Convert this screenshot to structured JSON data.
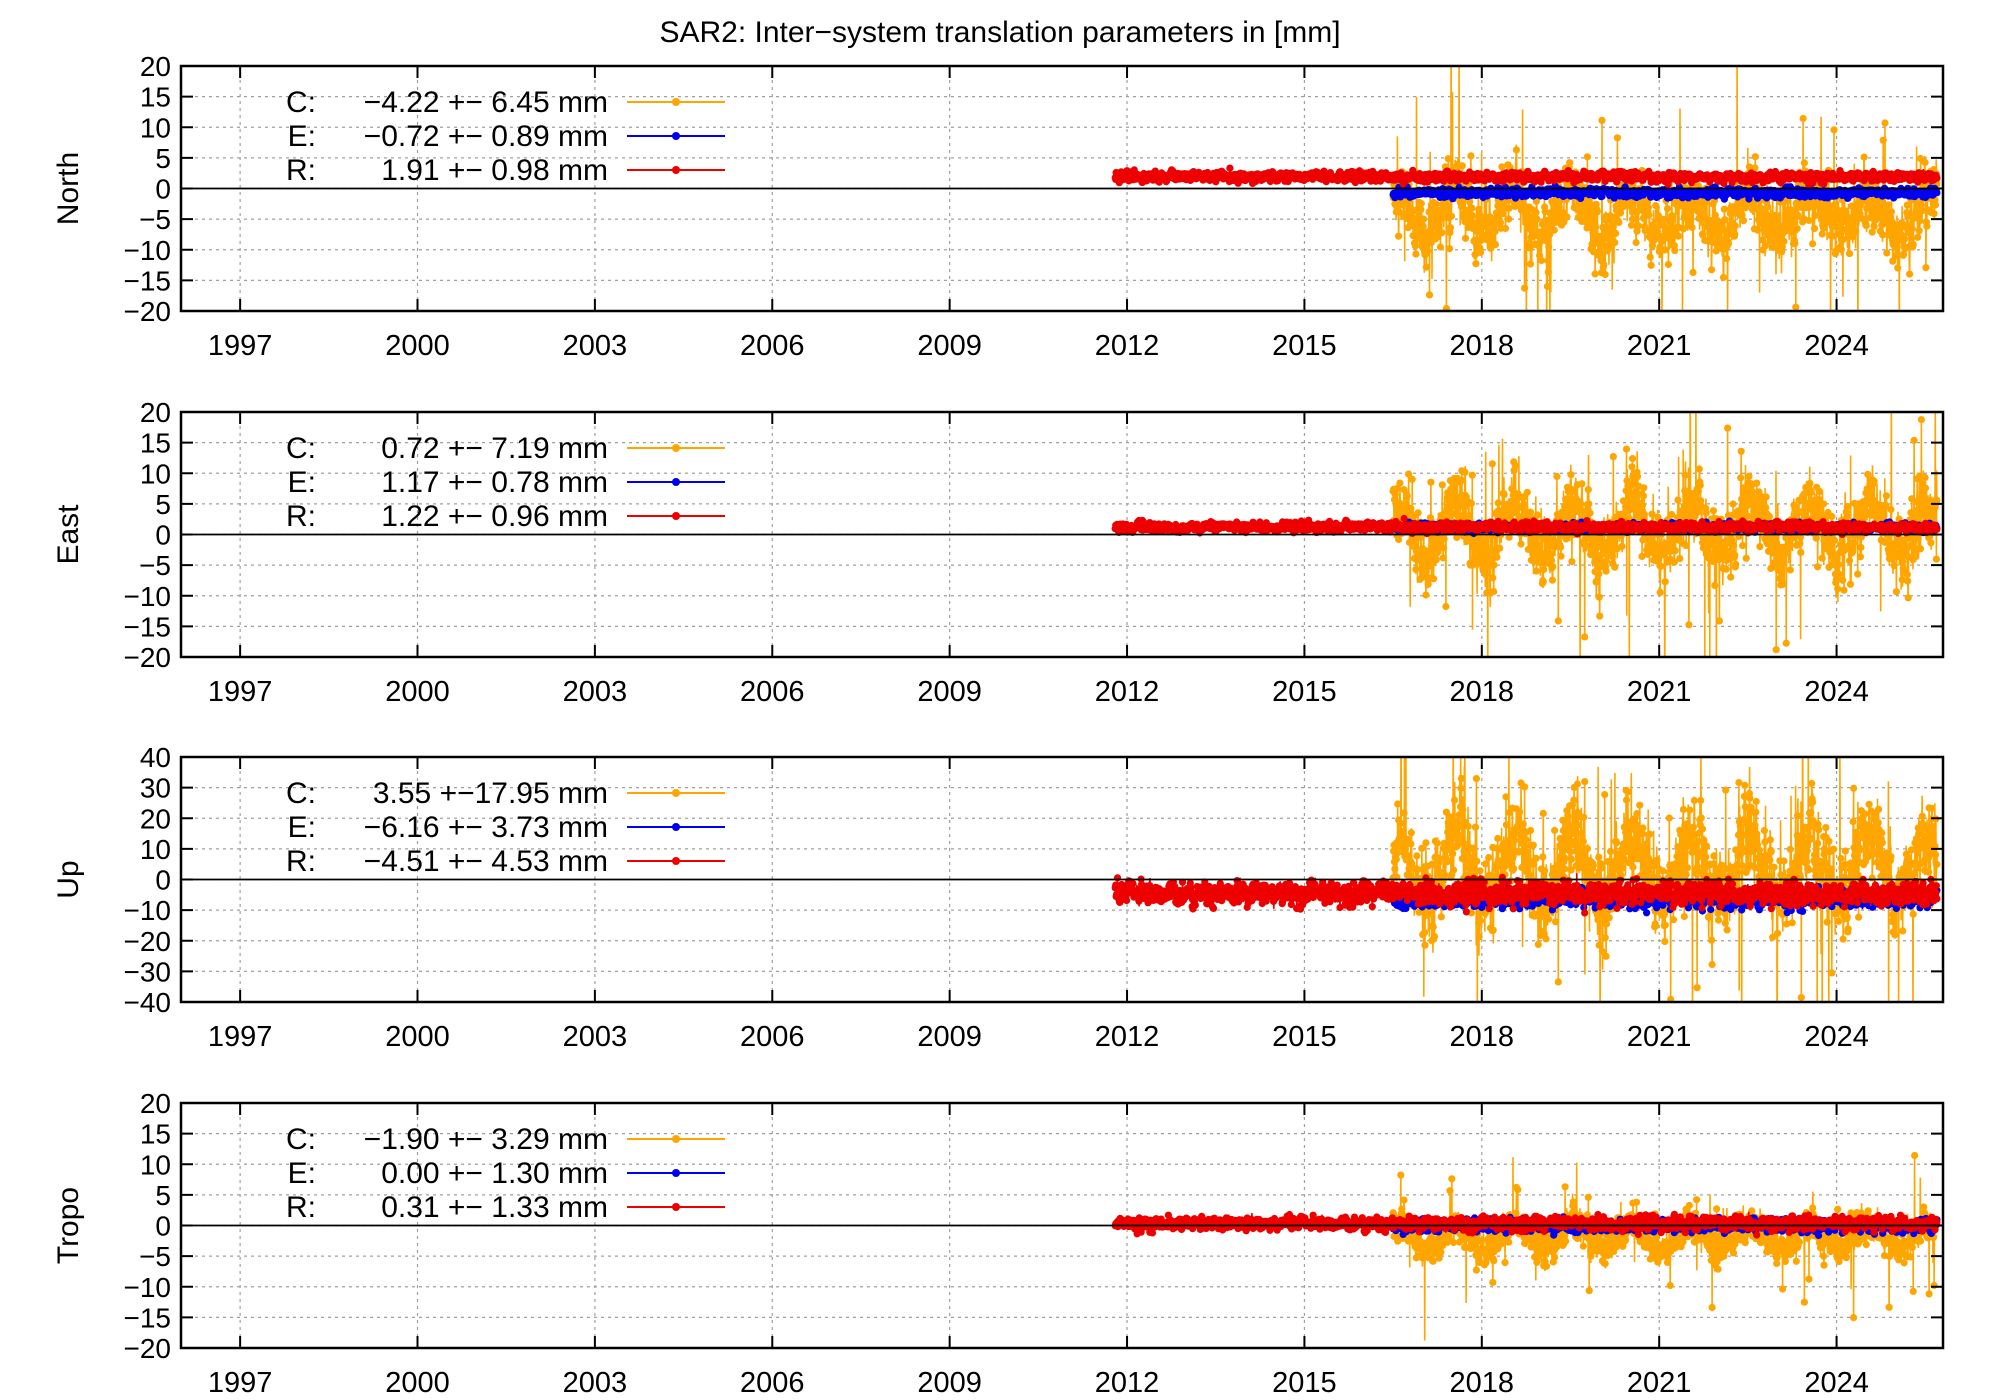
{
  "title": "SAR2: Inter−system translation parameters in [mm]",
  "colors": {
    "C": "#FFA500",
    "E": "#0000EE",
    "R": "#EE0000",
    "axis": "#000000",
    "grid": "#a0a0a0"
  },
  "chart_data": [
    {
      "type": "line",
      "ylabel": "North",
      "xlim": [
        1996,
        2025.8
      ],
      "ylim": [
        -20,
        20
      ],
      "yticks": [
        -20,
        -15,
        -10,
        -5,
        0,
        5,
        10,
        15,
        20
      ],
      "xticks": [
        1997,
        2000,
        2003,
        2006,
        2009,
        2012,
        2015,
        2018,
        2021,
        2024
      ],
      "xticklabels": [
        "1997",
        "2000",
        "2003",
        "2006",
        "2009",
        "2012",
        "2015",
        "2018",
        "2021",
        "2024"
      ],
      "grid": true,
      "legend_position": "top-left",
      "series": [
        {
          "key": "C",
          "name": "C:",
          "stats": "−4.22 +− 6.45 mm",
          "mean": -4.22,
          "std": 6.45,
          "start": 2016.5,
          "end": 2025.7
        },
        {
          "key": "E",
          "name": "E:",
          "stats": "−0.72 +− 0.89 mm",
          "mean": -0.72,
          "std": 0.89,
          "start": 2016.5,
          "end": 2025.7
        },
        {
          "key": "R",
          "name": "R:",
          "stats": "1.91 +− 0.98 mm",
          "mean": 1.91,
          "std": 0.98,
          "start": 2011.8,
          "end": 2025.7
        }
      ]
    },
    {
      "type": "line",
      "ylabel": "East",
      "xlim": [
        1996,
        2025.8
      ],
      "ylim": [
        -20,
        20
      ],
      "yticks": [
        -20,
        -15,
        -10,
        -5,
        0,
        5,
        10,
        15,
        20
      ],
      "xticks": [
        1997,
        2000,
        2003,
        2006,
        2009,
        2012,
        2015,
        2018,
        2021,
        2024
      ],
      "xticklabels": [
        "1997",
        "2000",
        "2003",
        "2006",
        "2009",
        "2012",
        "2015",
        "2018",
        "2021",
        "2024"
      ],
      "grid": true,
      "legend_position": "top-left",
      "series": [
        {
          "key": "C",
          "name": "C:",
          "stats": "0.72 +− 7.19 mm",
          "mean": 0.72,
          "std": 7.19,
          "start": 2016.5,
          "end": 2025.7
        },
        {
          "key": "E",
          "name": "E:",
          "stats": "1.17 +− 0.78 mm",
          "mean": 1.17,
          "std": 0.78,
          "start": 2016.5,
          "end": 2025.7
        },
        {
          "key": "R",
          "name": "R:",
          "stats": "1.22 +− 0.96 mm",
          "mean": 1.22,
          "std": 0.96,
          "start": 2011.8,
          "end": 2025.7
        }
      ]
    },
    {
      "type": "line",
      "ylabel": "Up",
      "xlim": [
        1996,
        2025.8
      ],
      "ylim": [
        -40,
        40
      ],
      "yticks": [
        -40,
        -30,
        -20,
        -10,
        0,
        10,
        20,
        30,
        40
      ],
      "xticks": [
        1997,
        2000,
        2003,
        2006,
        2009,
        2012,
        2015,
        2018,
        2021,
        2024
      ],
      "xticklabels": [
        "1997",
        "2000",
        "2003",
        "2006",
        "2009",
        "2012",
        "2015",
        "2018",
        "2021",
        "2024"
      ],
      "grid": true,
      "legend_position": "top-left",
      "series": [
        {
          "key": "C",
          "name": "C:",
          "stats": "3.55 +−17.95 mm",
          "mean": 3.55,
          "std": 17.95,
          "start": 2016.5,
          "end": 2025.7
        },
        {
          "key": "E",
          "name": "E:",
          "stats": "−6.16 +− 3.73 mm",
          "mean": -6.16,
          "std": 3.73,
          "start": 2016.5,
          "end": 2025.7
        },
        {
          "key": "R",
          "name": "R:",
          "stats": "−4.51 +− 4.53 mm",
          "mean": -4.51,
          "std": 4.53,
          "start": 2011.8,
          "end": 2025.7
        }
      ]
    },
    {
      "type": "line",
      "ylabel": "Tropo",
      "xlim": [
        1996,
        2025.8
      ],
      "ylim": [
        -20,
        20
      ],
      "yticks": [
        -20,
        -15,
        -10,
        -5,
        0,
        5,
        10,
        15,
        20
      ],
      "xticks": [
        1997,
        2000,
        2003,
        2006,
        2009,
        2012,
        2015,
        2018,
        2021,
        2024
      ],
      "xticklabels": [
        "1997",
        "2000",
        "2003",
        "2006",
        "2009",
        "2012",
        "2015",
        "2018",
        "2021",
        "2024"
      ],
      "grid": true,
      "legend_position": "top-left",
      "series": [
        {
          "key": "C",
          "name": "C:",
          "stats": "−1.90 +− 3.29 mm",
          "mean": -1.9,
          "std": 3.29,
          "start": 2016.5,
          "end": 2025.7
        },
        {
          "key": "E",
          "name": "E:",
          "stats": "0.00 +− 1.30 mm",
          "mean": 0.0,
          "std": 1.3,
          "start": 2016.5,
          "end": 2025.7
        },
        {
          "key": "R",
          "name": "R:",
          "stats": "0.31 +− 1.33 mm",
          "mean": 0.31,
          "std": 1.33,
          "start": 2011.8,
          "end": 2025.7
        }
      ]
    }
  ]
}
